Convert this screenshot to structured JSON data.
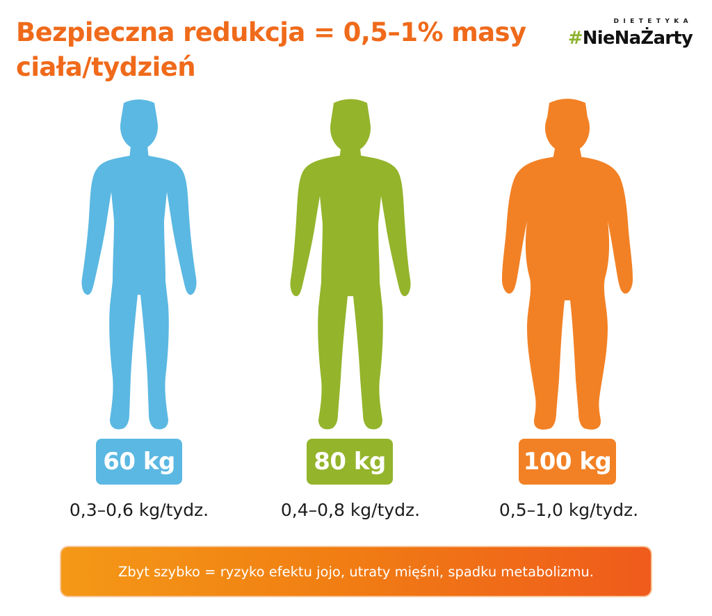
{
  "header": {
    "title": "Bezpieczna redukcja = 0,5–1% masy ciała/tydzień"
  },
  "logo": {
    "top_label": "DIETETYKA",
    "hashtag_symbol": "#",
    "hashtag_text": "NieNaŻarty",
    "hashtag_color": "#8fb331"
  },
  "figures": [
    {
      "weight": "60 kg",
      "rate": "0,3–0,6 kg/tydz.",
      "color": "#5bb8e2",
      "icon": "slim-body-silhouette-icon"
    },
    {
      "weight": "80 kg",
      "rate": "0,4–0,8 kg/tydz.",
      "color": "#94b42b",
      "icon": "average-body-silhouette-icon"
    },
    {
      "weight": "100 kg",
      "rate": "0,5–1,0 kg/tydz.",
      "color": "#f28125",
      "icon": "heavy-body-silhouette-icon"
    }
  ],
  "warning": {
    "text": "Zbyt szybko = ryzyko efektu jojo, utraty mięśni, spadku metabolizmu."
  },
  "colors": {
    "accent_orange": "#ef6a1a",
    "blue": "#5bb8e2",
    "green": "#94b42b",
    "orange": "#f28125"
  }
}
